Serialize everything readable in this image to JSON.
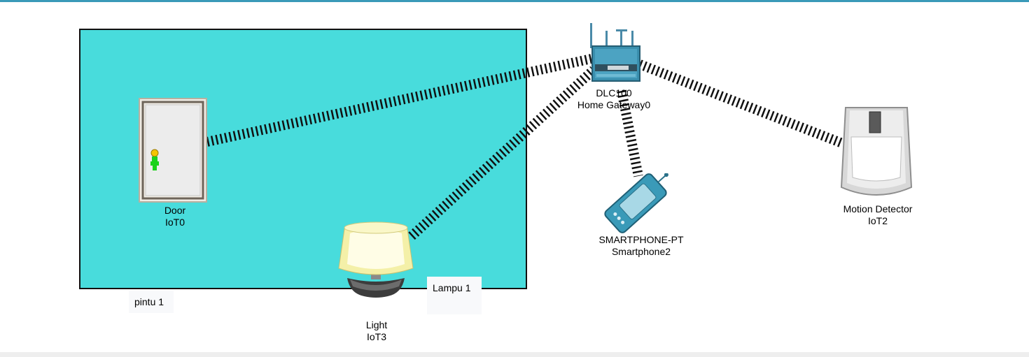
{
  "workspace": {
    "devices": [
      {
        "id": "door",
        "model": "Door",
        "name": "IoT0"
      },
      {
        "id": "light",
        "model": "Light",
        "name": "IoT3"
      },
      {
        "id": "gateway",
        "model": "DLC100",
        "name": "Home Gateway0"
      },
      {
        "id": "smartphone",
        "model": "SMARTPHONE-PT",
        "name": "Smartphone2"
      },
      {
        "id": "motion",
        "model": "Motion Detector",
        "name": "IoT2"
      }
    ],
    "notes": [
      {
        "text": "pintu 1"
      },
      {
        "text": "Lampu 1"
      }
    ],
    "colors": {
      "room": "#48dcdc",
      "accent": "#3a9ab8",
      "link": "#111111"
    },
    "icons": [
      "door-icon",
      "light-icon",
      "home-gateway-icon",
      "smartphone-icon",
      "motion-detector-icon"
    ]
  }
}
